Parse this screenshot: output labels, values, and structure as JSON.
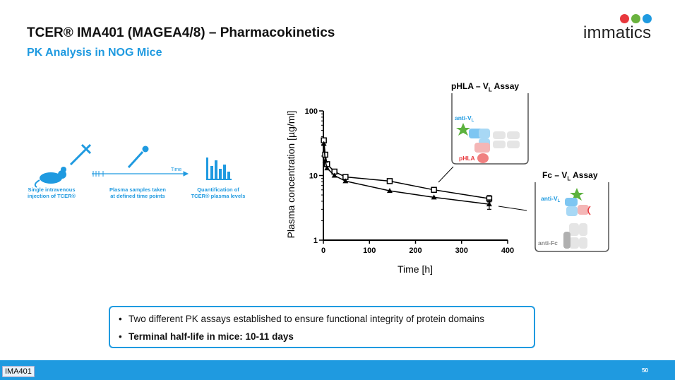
{
  "slide": {
    "title": "TCER® IMA401 (MAGEA4/8) – Pharmacokinetics",
    "subtitle": "PK Analysis in NOG Mice",
    "page_number": "50",
    "footer_tag": "IMA401"
  },
  "logo": {
    "text": "immatics",
    "colors": [
      "#e8383d",
      "#6ab23e",
      "#1f9ae0"
    ]
  },
  "workflow": {
    "steps": [
      {
        "label_line1": "Single intravenous",
        "label_line2": "injection of TCER®"
      },
      {
        "label_line1": "Plasma samples taken",
        "label_line2": "at defined time points"
      },
      {
        "label_line1": "Quantification of",
        "label_line2": "TCER® plasma levels"
      }
    ],
    "timeline_label": "Time"
  },
  "assays": {
    "pHLA": {
      "label_prefix": "pHLA – V",
      "label_sub": "L",
      "label_suffix": " Assay",
      "capture_prefix": "anti-V",
      "capture_sub": "L",
      "target": "pHLA"
    },
    "Fc": {
      "label_prefix": "Fc – V",
      "label_sub": "L",
      "label_suffix": " Assay",
      "capture_prefix": "anti-V",
      "capture_sub": "L",
      "detect": "anti-Fc"
    }
  },
  "chart_data": {
    "type": "line",
    "title": "",
    "xlabel": "Time [h]",
    "ylabel": "Plasma concentration [µg/ml]",
    "xlim": [
      0,
      400
    ],
    "ylim": [
      1,
      100
    ],
    "yscale": "log",
    "xticks": [
      0,
      100,
      200,
      300,
      400
    ],
    "yticks": [
      1,
      10,
      100
    ],
    "ytick_labels": [
      "1",
      "10",
      "100"
    ],
    "series": [
      {
        "name": "pHLA – VL Assay",
        "marker": "square",
        "x": [
          1,
          4,
          8,
          24,
          48,
          144,
          240,
          360
        ],
        "y": [
          35,
          21,
          15,
          11.5,
          9.5,
          8.2,
          6.0,
          4.4
        ],
        "err": [
          0,
          0,
          0,
          0,
          0,
          0,
          0,
          0.5
        ]
      },
      {
        "name": "Fc – VL Assay",
        "marker": "triangle",
        "x": [
          1,
          4,
          8,
          24,
          48,
          144,
          240,
          360
        ],
        "y": [
          31,
          17,
          13,
          10,
          8.2,
          5.8,
          4.6,
          3.6
        ],
        "err": [
          0,
          0,
          0,
          0,
          0,
          0,
          0,
          0.6
        ]
      }
    ]
  },
  "bullets": [
    {
      "text": "Two different PK assays established to ensure functional integrity of protein domains",
      "bold": false
    },
    {
      "text": "Terminal half-life in mice: 10-11 days",
      "bold": true
    }
  ]
}
